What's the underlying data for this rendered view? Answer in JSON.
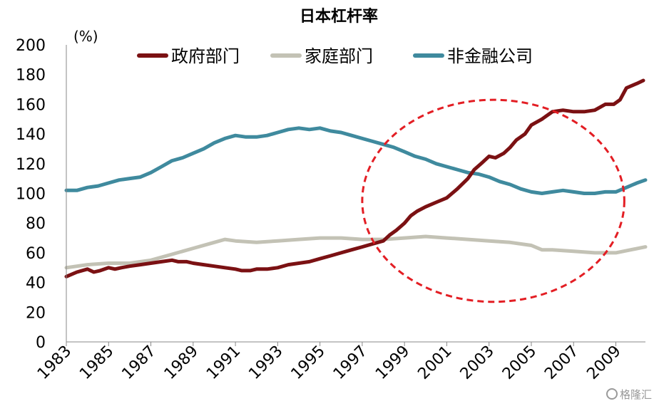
{
  "chart_data": {
    "type": "line",
    "title": "日本杠杆率",
    "ylabel": "(%)",
    "xlabel": "",
    "ylim": [
      0,
      200
    ],
    "y_ticks": [
      0,
      20,
      40,
      60,
      80,
      100,
      120,
      140,
      160,
      180,
      200
    ],
    "x_ticks": [
      "1983",
      "1985",
      "1987",
      "1989",
      "1991",
      "1993",
      "1995",
      "1997",
      "1999",
      "2001",
      "2003",
      "2005",
      "2007",
      "2009"
    ],
    "xlim": [
      1983,
      2010.4
    ],
    "legend_position": "top",
    "grid": false,
    "annotation": {
      "type": "dashed-ellipse",
      "color": "#e31e24",
      "center": [
        2003.2,
        95
      ],
      "radii": [
        6.2,
        68
      ]
    },
    "series": [
      {
        "name": "政府部门",
        "color": "#7b1113",
        "x": [
          1983,
          1983.5,
          1984,
          1984.3,
          1984.6,
          1985,
          1985.3,
          1985.6,
          1986,
          1986.5,
          1987,
          1987.5,
          1988,
          1988.3,
          1988.7,
          1989,
          1989.5,
          1990,
          1990.5,
          1991,
          1991.3,
          1991.7,
          1992,
          1992.5,
          1993,
          1993.5,
          1994,
          1994.5,
          1995,
          1995.5,
          1996,
          1996.5,
          1997,
          1997.5,
          1998,
          1998.3,
          1998.6,
          1999,
          1999.3,
          1999.6,
          2000,
          2000.5,
          2001,
          2001.5,
          2002,
          2002.3,
          2002.7,
          2003,
          2003.3,
          2003.7,
          2004,
          2004.3,
          2004.7,
          2005,
          2005.5,
          2006,
          2006.5,
          2007,
          2007.5,
          2008,
          2008.5,
          2008.9,
          2009.2,
          2009.5,
          2010,
          2010.3
        ],
        "values": [
          44,
          47,
          49,
          47,
          48,
          50,
          49,
          50,
          51,
          52,
          53,
          54,
          55,
          54,
          54,
          53,
          52,
          51,
          50,
          49,
          48,
          48,
          49,
          49,
          50,
          52,
          53,
          54,
          56,
          58,
          60,
          62,
          64,
          66,
          68,
          72,
          75,
          80,
          85,
          88,
          91,
          94,
          97,
          103,
          110,
          116,
          121,
          125,
          124,
          127,
          131,
          136,
          140,
          146,
          150,
          155,
          156,
          155,
          155,
          156,
          160,
          160,
          163,
          171,
          174,
          176
        ]
      },
      {
        "name": "家庭部门",
        "color": "#c3c2b5",
        "x": [
          1983,
          1984,
          1985,
          1986,
          1987,
          1988,
          1989,
          1990,
          1990.5,
          1991,
          1992,
          1993,
          1994,
          1995,
          1996,
          1997,
          1998,
          1999,
          2000,
          2001,
          2002,
          2003,
          2004,
          2005,
          2005.5,
          2006,
          2007,
          2008,
          2008.5,
          2009,
          2010.4
        ],
        "values": [
          50,
          52,
          53,
          53,
          55,
          59,
          63,
          67,
          69,
          68,
          67,
          68,
          69,
          70,
          70,
          69,
          69,
          70,
          71,
          70,
          69,
          68,
          67,
          65,
          62,
          62,
          61,
          60,
          60,
          60,
          64
        ]
      },
      {
        "name": "非金融公司",
        "color": "#3f8a9e",
        "x": [
          1983,
          1983.5,
          1984,
          1984.5,
          1985,
          1985.5,
          1986,
          1986.5,
          1987,
          1987.5,
          1988,
          1988.5,
          1989,
          1989.5,
          1990,
          1990.5,
          1991,
          1991.5,
          1992,
          1992.5,
          1993,
          1993.5,
          1994,
          1994.5,
          1995,
          1995.5,
          1996,
          1996.5,
          1997,
          1997.5,
          1998,
          1998.5,
          1999,
          1999.5,
          2000,
          2000.5,
          2001,
          2001.5,
          2002,
          2002.5,
          2003,
          2003.5,
          2004,
          2004.5,
          2005,
          2005.5,
          2006,
          2006.5,
          2007,
          2007.5,
          2008,
          2008.5,
          2009,
          2009.5,
          2010,
          2010.4
        ],
        "values": [
          102,
          102,
          104,
          105,
          107,
          109,
          110,
          111,
          114,
          118,
          122,
          124,
          127,
          130,
          134,
          137,
          139,
          138,
          138,
          139,
          141,
          143,
          144,
          143,
          144,
          142,
          141,
          139,
          137,
          135,
          133,
          131,
          128,
          125,
          123,
          120,
          118,
          116,
          114,
          113,
          111,
          108,
          106,
          103,
          101,
          100,
          101,
          102,
          101,
          100,
          100,
          101,
          101,
          104,
          107,
          109
        ]
      }
    ]
  },
  "watermark": "格隆汇"
}
